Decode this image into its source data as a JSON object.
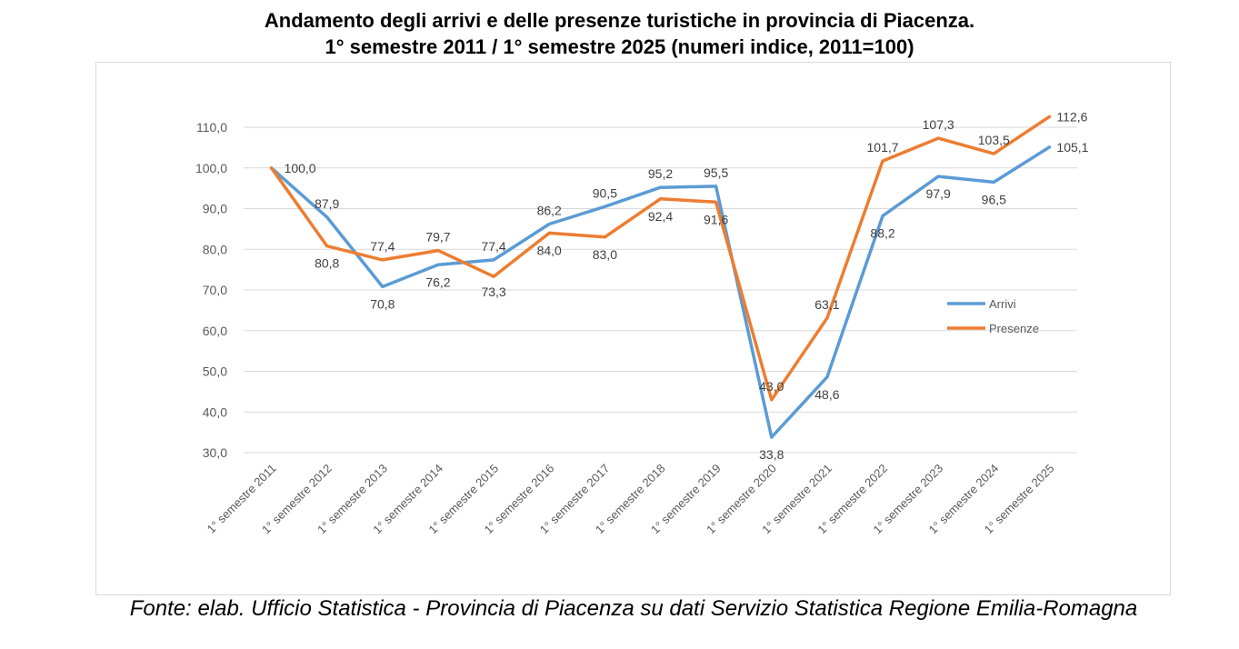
{
  "chart_data": {
    "type": "line",
    "title_line1": "Andamento degli arrivi e delle presenze turistiche in provincia di Piacenza.",
    "title_line2": "1° semestre 2011 / 1° semestre 2025 (numeri indice, 2011=100)",
    "source": "Fonte: elab. Ufficio Statistica - Provincia di Piacenza su dati Servizio Statistica Regione Emilia-Romagna",
    "categories": [
      "1° semestre 2011",
      "1° semestre 2012",
      "1° semestre 2013",
      "1° semestre 2014",
      "1° semestre 2015",
      "1° semestre 2016",
      "1° semestre 2017",
      "1° semestre 2018",
      "1° semestre 2019",
      "1° semestre 2020",
      "1° semestre 2021",
      "1° semestre 2022",
      "1° semestre 2023",
      "1° semestre 2024",
      "1° semestre 2025"
    ],
    "ylim": [
      30,
      110
    ],
    "yticks": [
      "30,0",
      "40,0",
      "50,0",
      "60,0",
      "70,0",
      "80,0",
      "90,0",
      "100,0",
      "110,0"
    ],
    "grid": true,
    "legend_position": "right",
    "series": [
      {
        "name": "Arrivi",
        "color": "#5b9bd5",
        "values": [
          100.0,
          87.9,
          70.8,
          76.2,
          77.4,
          86.2,
          90.5,
          95.2,
          95.5,
          33.8,
          48.6,
          88.2,
          97.9,
          96.5,
          105.1
        ],
        "labels": [
          "100,0",
          "87,9",
          "70,8",
          "76,2",
          "77,4",
          "86,2",
          "90,5",
          "95,2",
          "95,5",
          "33,8",
          "48,6",
          "88,2",
          "97,9",
          "96,5",
          "105,1"
        ]
      },
      {
        "name": "Presenze",
        "color": "#ed7d31",
        "values": [
          100.0,
          80.8,
          77.4,
          79.7,
          73.3,
          84.0,
          83.0,
          92.4,
          91.6,
          43.0,
          63.1,
          101.7,
          107.3,
          103.5,
          112.6
        ],
        "labels": [
          "100,0",
          "80,8",
          "77,4",
          "79,7",
          "73,3",
          "84,0",
          "83,0",
          "92,4",
          "91,6",
          "43,0",
          "63,1",
          "101,7",
          "107,3",
          "103,5",
          "112,6"
        ]
      }
    ]
  }
}
